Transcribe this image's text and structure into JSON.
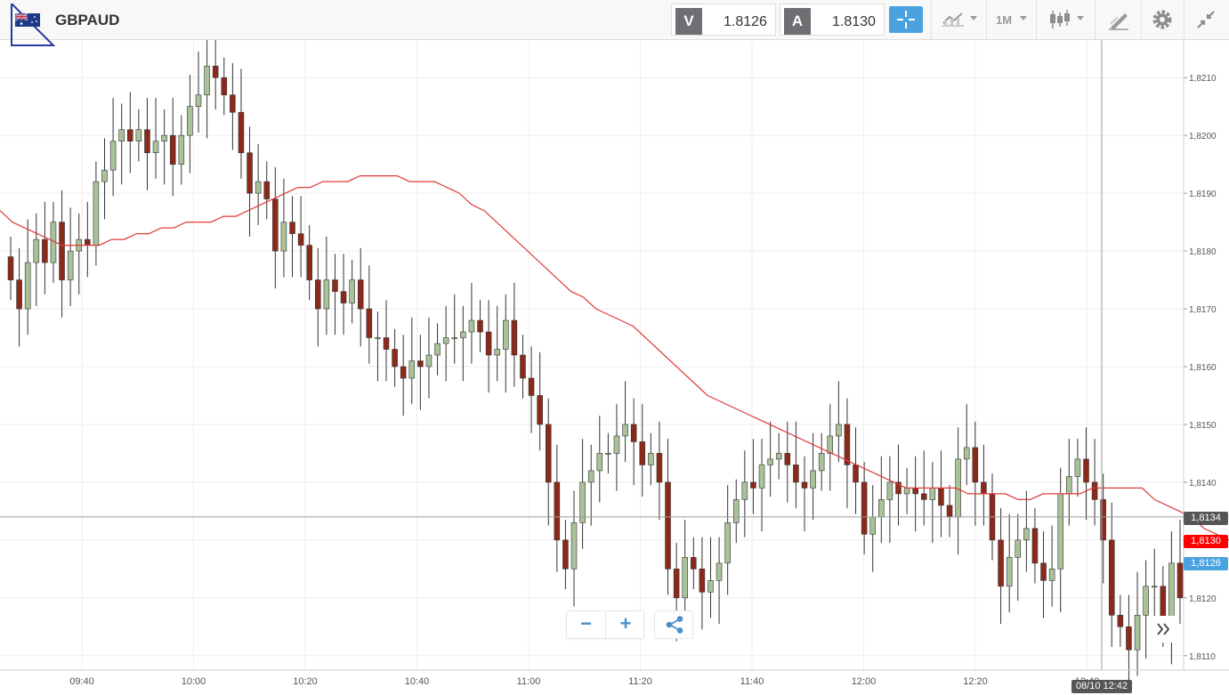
{
  "header": {
    "symbol": "GBPAUD",
    "bid_label": "V",
    "bid_value": "1.8126",
    "ask_label": "A",
    "ask_value": "1.8130",
    "timeframe_label": "1M",
    "icons": [
      "flag-icon",
      "crosshair-icon",
      "line-chart-icon",
      "candlestick-icon",
      "draw-icon",
      "gear-icon",
      "collapse-icon"
    ]
  },
  "colors": {
    "bull": "#a9c29a",
    "bear": "#8b2a1a",
    "ma": "#e03a3a",
    "accent": "#4aa3df",
    "crosshair_tag": "#555555",
    "ask_tag": "#ff0000",
    "bid_tag": "#4aa3df"
  },
  "chart_data": {
    "type": "candlestick",
    "x_ticks": [
      "09:40",
      "10:00",
      "10:20",
      "10:40",
      "11:00",
      "11:20",
      "11:40",
      "12:00",
      "12:20",
      "12:40"
    ],
    "y_ticks": [
      "1,8110",
      "1,8120",
      "1,8130",
      "1,8140",
      "1,8150",
      "1,8160",
      "1,8170",
      "1,8180",
      "1,8190",
      "1,8200",
      "1,8210"
    ],
    "y_range": [
      1.81075,
      1.82165
    ],
    "crosshair_price": "1,8134",
    "ask_price": "1,8130",
    "bid_price": "1,8126",
    "crosshair_time": "08/10 12:42",
    "close_series": [
      1.8175,
      1.817,
      1.8178,
      1.8182,
      1.8178,
      1.8185,
      1.8175,
      1.818,
      1.8182,
      1.8181,
      1.8192,
      1.8194,
      1.8199,
      1.8201,
      1.8199,
      1.8201,
      1.8197,
      1.8199,
      1.82,
      1.8195,
      1.82,
      1.8205,
      1.8207,
      1.8212,
      1.821,
      1.8207,
      1.8204,
      1.8197,
      1.819,
      1.8192,
      1.8189,
      1.818,
      1.8185,
      1.8183,
      1.8181,
      1.8175,
      1.817,
      1.8175,
      1.8173,
      1.8171,
      1.8175,
      1.817,
      1.8165,
      1.8165,
      1.8163,
      1.816,
      1.8158,
      1.8161,
      1.816,
      1.8162,
      1.8164,
      1.8165,
      1.8165,
      1.8166,
      1.8168,
      1.8166,
      1.8162,
      1.8163,
      1.8168,
      1.8162,
      1.8158,
      1.8155,
      1.815,
      1.814,
      1.813,
      1.8125,
      1.8133,
      1.814,
      1.8142,
      1.8145,
      1.8145,
      1.8148,
      1.815,
      1.8147,
      1.8143,
      1.8145,
      1.814,
      1.8125,
      1.812,
      1.8127,
      1.8125,
      1.8121,
      1.8123,
      1.8126,
      1.8133,
      1.8137,
      1.814,
      1.8139,
      1.8143,
      1.8144,
      1.8145,
      1.8143,
      1.814,
      1.8139,
      1.8142,
      1.8145,
      1.8148,
      1.815,
      1.8143,
      1.814,
      1.8131,
      1.8134,
      1.8137,
      1.814,
      1.8138,
      1.8139,
      1.8138,
      1.8137,
      1.8139,
      1.8136,
      1.8134,
      1.8144,
      1.8146,
      1.814,
      1.8138,
      1.813,
      1.8122,
      1.8127,
      1.813,
      1.8132,
      1.8126,
      1.8123,
      1.8125,
      1.8138,
      1.8141,
      1.8144,
      1.814,
      1.8137,
      1.813,
      1.8117,
      1.8115,
      1.8111,
      1.8117,
      1.8122,
      1.8122,
      1.8115,
      1.8126,
      1.812
    ],
    "ma_series": [
      1.8187,
      1.8185,
      1.8184,
      1.8183,
      1.8182,
      1.8181,
      1.8181,
      1.8181,
      1.8181,
      1.8182,
      1.8182,
      1.8183,
      1.8183,
      1.8184,
      1.8184,
      1.8185,
      1.8185,
      1.8185,
      1.8186,
      1.8186,
      1.8187,
      1.8188,
      1.8189,
      1.819,
      1.8191,
      1.8191,
      1.8192,
      1.8192,
      1.8192,
      1.8193,
      1.8193,
      1.8193,
      1.8193,
      1.8192,
      1.8192,
      1.8192,
      1.8191,
      1.819,
      1.8188,
      1.8187,
      1.8185,
      1.8183,
      1.8181,
      1.8179,
      1.8177,
      1.8175,
      1.8173,
      1.8172,
      1.817,
      1.8169,
      1.8168,
      1.8167,
      1.8165,
      1.8163,
      1.8161,
      1.8159,
      1.8157,
      1.8155,
      1.8154,
      1.8153,
      1.8152,
      1.8151,
      1.815,
      1.8149,
      1.8148,
      1.8147,
      1.8146,
      1.8145,
      1.8144,
      1.8143,
      1.8142,
      1.8141,
      1.814,
      1.8139,
      1.8139,
      1.8139,
      1.8139,
      1.8139,
      1.8138,
      1.8138,
      1.8138,
      1.8138,
      1.8137,
      1.8137,
      1.8138,
      1.8138,
      1.8138,
      1.8138,
      1.8139,
      1.8139,
      1.8139,
      1.8139,
      1.8139,
      1.8137,
      1.8136,
      1.8135,
      1.8134,
      1.8132,
      1.8131,
      1.813
    ]
  }
}
